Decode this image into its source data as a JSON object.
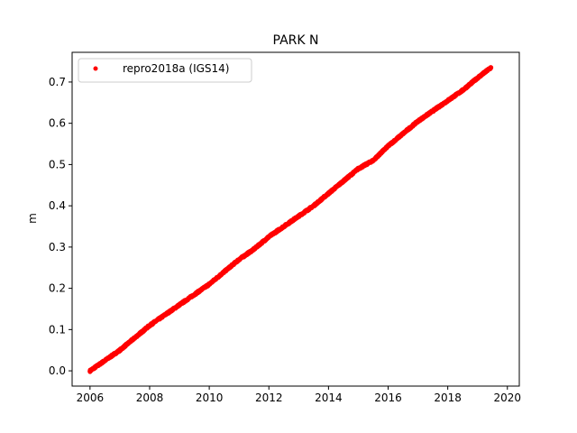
{
  "chart_data": {
    "type": "scatter",
    "title": "PARK N",
    "xlabel": "",
    "ylabel": "m",
    "xlim": [
      2005.4,
      2020.4
    ],
    "ylim": [
      -0.037,
      0.772
    ],
    "x_ticks": [
      2006,
      2008,
      2010,
      2012,
      2014,
      2016,
      2018,
      2020
    ],
    "y_ticks": [
      0.0,
      0.1,
      0.2,
      0.3,
      0.4,
      0.5,
      0.6,
      0.7
    ],
    "x_tick_labels": [
      "2006",
      "2008",
      "2010",
      "2012",
      "2014",
      "2016",
      "2018",
      "2020"
    ],
    "y_tick_labels": [
      "0.0",
      "0.1",
      "0.2",
      "0.3",
      "0.4",
      "0.5",
      "0.6",
      "0.7"
    ],
    "grid": false,
    "legend_position": "upper left",
    "series": [
      {
        "name": "repro2018a (IGS14)",
        "color": "#ff0000",
        "marker": "point",
        "x": [
          2006.0,
          2006.5,
          2007.0,
          2007.5,
          2008.0,
          2008.5,
          2009.0,
          2009.5,
          2010.0,
          2010.5,
          2011.0,
          2011.5,
          2012.0,
          2012.5,
          2013.0,
          2013.5,
          2014.0,
          2014.5,
          2015.0,
          2015.5,
          2016.0,
          2016.5,
          2017.0,
          2017.5,
          2018.0,
          2018.5,
          2019.0,
          2019.45
        ],
        "y": [
          0.0,
          0.025,
          0.05,
          0.08,
          0.11,
          0.135,
          0.16,
          0.185,
          0.21,
          0.24,
          0.27,
          0.295,
          0.325,
          0.35,
          0.375,
          0.4,
          0.43,
          0.46,
          0.49,
          0.51,
          0.545,
          0.575,
          0.605,
          0.63,
          0.655,
          0.68,
          0.71,
          0.735
        ]
      }
    ]
  }
}
